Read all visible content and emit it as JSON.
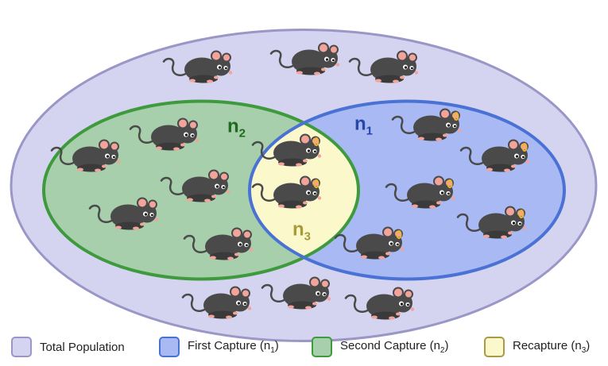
{
  "diagram": {
    "labels": {
      "n2": {
        "main": "n",
        "sub": "2"
      },
      "n1": {
        "main": "n",
        "sub": "1"
      },
      "n3": {
        "main": "n",
        "sub": "3"
      }
    },
    "mice": [
      {
        "group": "outside",
        "tagged": false
      },
      {
        "group": "outside",
        "tagged": false
      },
      {
        "group": "outside",
        "tagged": false
      },
      {
        "group": "outside",
        "tagged": false
      },
      {
        "group": "outside",
        "tagged": false
      },
      {
        "group": "outside",
        "tagged": false
      },
      {
        "group": "second-capture",
        "tagged": false
      },
      {
        "group": "second-capture",
        "tagged": false
      },
      {
        "group": "second-capture",
        "tagged": false
      },
      {
        "group": "second-capture",
        "tagged": false
      },
      {
        "group": "second-capture",
        "tagged": false
      },
      {
        "group": "recapture",
        "tagged": true
      },
      {
        "group": "recapture",
        "tagged": true
      },
      {
        "group": "first-capture",
        "tagged": true
      },
      {
        "group": "first-capture",
        "tagged": true
      },
      {
        "group": "first-capture",
        "tagged": true
      },
      {
        "group": "first-capture",
        "tagged": true
      },
      {
        "group": "first-capture",
        "tagged": true
      }
    ]
  },
  "colors": {
    "total_fill": "#d4d4f1",
    "total_stroke": "#9a96c6",
    "first_fill": "#a8b9f4",
    "first_stroke": "#4a72d4",
    "second_fill": "#a7cfac",
    "second_stroke": "#3f9a3d",
    "recapture_fill": "#fbf9cc",
    "recapture_stroke": "#a99a45",
    "n1_text": "#2646a8",
    "n2_text": "#1e6a1f",
    "n3_text": "#a89a38",
    "mouse_body": "#4a4a4a",
    "mouse_pink": "#f2a39a",
    "tag": "#f0b632"
  },
  "legend": [
    {
      "id": "total",
      "text": "Total Population",
      "sub": ""
    },
    {
      "id": "first",
      "text": "First Capture (n",
      "sub": "1",
      "suffix": ")"
    },
    {
      "id": "second",
      "text": "Second Capture (n",
      "sub": "2",
      "suffix": ")"
    },
    {
      "id": "recapture",
      "text": "Recapture (n",
      "sub": "3",
      "suffix": ")"
    }
  ]
}
